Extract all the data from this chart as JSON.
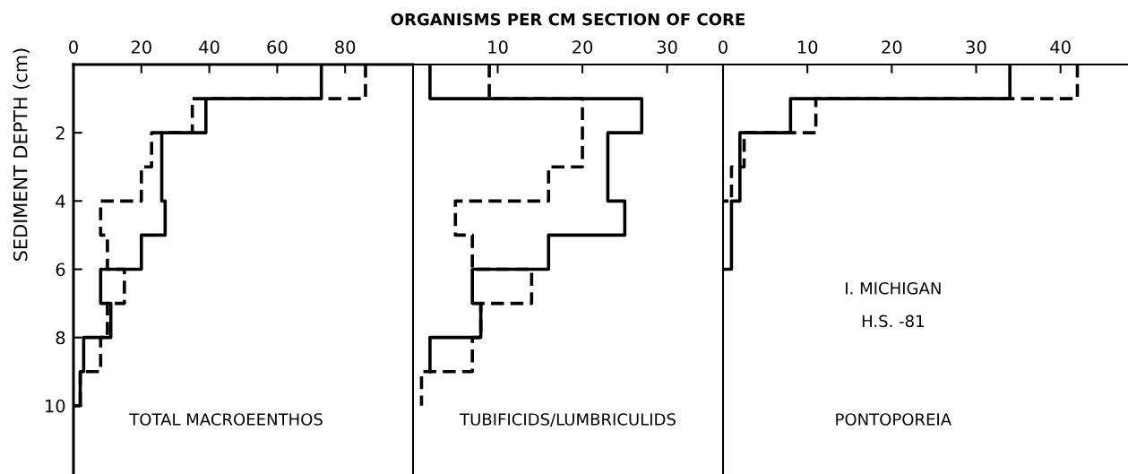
{
  "chart_data": [
    {
      "type": "step",
      "orientation": "horizontal",
      "ylabel": "SEDIMENT DEPTH (cm)",
      "xlim": [
        0,
        100
      ],
      "xticks": [
        0,
        20,
        40,
        60,
        80
      ],
      "ylim": [
        12,
        0
      ],
      "yticks": [
        2,
        4,
        6,
        8,
        10
      ],
      "grid": false,
      "legend": false,
      "annotations": [
        "TOTAL MACROEENTHOS"
      ],
      "series": [
        {
          "color": "#000000",
          "line_style": "solid",
          "x": [
            0,
            1,
            2,
            3,
            4,
            5,
            6,
            7,
            8,
            9,
            10
          ],
          "values": [
            73,
            39,
            26,
            26,
            27,
            20,
            8,
            11,
            3,
            2,
            0
          ]
        },
        {
          "color": "#000000",
          "line_style": "dashed",
          "x": [
            0,
            1,
            2,
            3,
            4,
            5,
            6,
            7,
            8,
            9,
            10
          ],
          "values": [
            86,
            35,
            23,
            20,
            8,
            10,
            15,
            10,
            8,
            2,
            0
          ]
        }
      ]
    },
    {
      "type": "step",
      "orientation": "horizontal",
      "xlabel": "ORGANISMS PER CM SECTION OF CORE",
      "xlim": [
        0,
        36.6
      ],
      "xticks": [
        10,
        20,
        30
      ],
      "ylim": [
        12,
        0
      ],
      "tick_labels": "x",
      "grid": false,
      "legend": false,
      "annotations": [
        "TUBIFICIDS/LUMBRICULIDS"
      ],
      "series": [
        {
          "color": "#000000",
          "line_style": "solid",
          "x": [
            0,
            1,
            2,
            3,
            4,
            5,
            6,
            7,
            8,
            9
          ],
          "values": [
            2,
            27,
            23,
            23,
            25,
            16,
            7,
            8,
            2,
            2
          ]
        },
        {
          "color": "#000000",
          "line_style": "dashed",
          "x": [
            0,
            1,
            2,
            3,
            4,
            5,
            6,
            7,
            8,
            9,
            10
          ],
          "values": [
            9,
            20,
            20,
            16,
            5,
            7,
            14,
            8,
            7,
            1,
            1
          ]
        }
      ]
    },
    {
      "type": "step",
      "orientation": "horizontal",
      "xlim": [
        0,
        48
      ],
      "xticks": [
        0,
        10,
        20,
        30,
        40
      ],
      "ylim": [
        12,
        0
      ],
      "tick_labels": "x",
      "grid": false,
      "legend": false,
      "annotations": [
        "I. MICHIGAN",
        "H.S. -81",
        "PONTOPOREIA"
      ],
      "series": [
        {
          "color": "#000000",
          "line_style": "solid",
          "x": [
            0,
            1,
            2,
            3,
            4,
            5,
            6
          ],
          "values": [
            34,
            8,
            2,
            2,
            1,
            1,
            0
          ]
        },
        {
          "color": "#000000",
          "line_style": "dashed",
          "x": [
            0,
            1,
            2,
            3,
            4
          ],
          "values": [
            42,
            11,
            2.5,
            1,
            0
          ]
        }
      ]
    }
  ]
}
